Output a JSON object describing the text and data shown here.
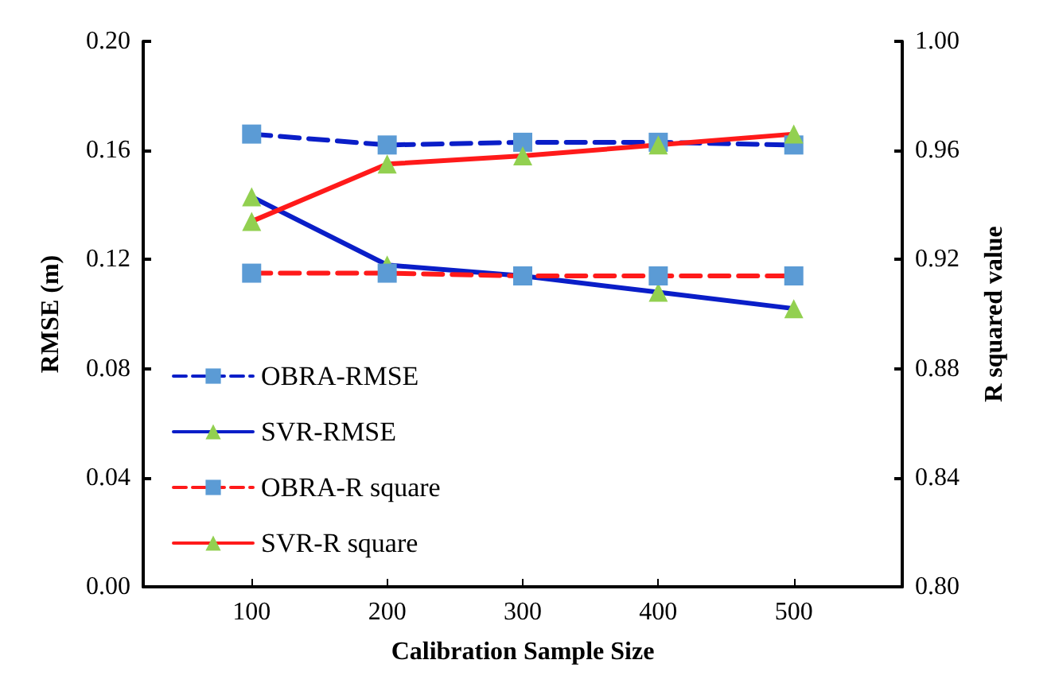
{
  "chart_data": {
    "type": "line",
    "xlabel": "Calibration Sample Size",
    "ylabel": "RMSE (m)",
    "y2label": "R squared value",
    "x": [
      100,
      200,
      300,
      400,
      500
    ],
    "xlim": [
      20,
      580
    ],
    "xticks": [
      100,
      200,
      300,
      400,
      500
    ],
    "ylim": [
      0,
      0.2
    ],
    "yticks": [
      {
        "value": 0,
        "label": "0.00"
      },
      {
        "value": 0.04,
        "label": "0.04"
      },
      {
        "value": 0.08,
        "label": "0.08"
      },
      {
        "value": 0.12,
        "label": "0.12"
      },
      {
        "value": 0.16,
        "label": "0.16"
      },
      {
        "value": 0.2,
        "label": "0.20"
      }
    ],
    "y2lim": [
      0.8,
      1.0
    ],
    "y2ticks": [
      {
        "value": 0.8,
        "label": "0.80"
      },
      {
        "value": 0.84,
        "label": "0.84"
      },
      {
        "value": 0.88,
        "label": "0.88"
      },
      {
        "value": 0.92,
        "label": "0.92"
      },
      {
        "value": 0.96,
        "label": "0.96"
      },
      {
        "value": 1.0,
        "label": "1.00"
      }
    ],
    "grid": false,
    "legend": "left",
    "series": [
      {
        "name": "OBRA-RMSE",
        "color": "#0a1ec8",
        "colors": [
          "#5b9bd5",
          "#5b9bd5",
          "#5b9bd5",
          "#5b9bd5",
          "#5b9bd5"
        ],
        "marker": "square",
        "line_style": "dashed",
        "values": [
          0.166,
          0.162,
          0.163,
          0.163,
          0.162
        ]
      },
      {
        "name": "SVR-RMSE",
        "color": "#0a1ec8",
        "colors": [
          "#92d050",
          "#92d050",
          "#92d050",
          "#92d050",
          "#92d050"
        ],
        "marker": "triangle",
        "line_style": "solid",
        "values": [
          0.143,
          0.118,
          0.114,
          0.108,
          0.102
        ]
      },
      {
        "name": "OBRA-R square",
        "color": "#ff1a1a",
        "colors": [
          "#5b9bd5",
          "#5b9bd5",
          "#5b9bd5",
          "#5b9bd5",
          "#5b9bd5"
        ],
        "marker": "square",
        "line_style": "dashed",
        "axis": "y2",
        "values": [
          0.915,
          0.915,
          0.914,
          0.914,
          0.914
        ]
      },
      {
        "name": "SVR-R square",
        "color": "#ff1a1a",
        "colors": [
          "#92d050",
          "#92d050",
          "#92d050",
          "#92d050",
          "#92d050"
        ],
        "marker": "triangle",
        "line_style": "solid",
        "axis": "y2",
        "values": [
          0.934,
          0.955,
          0.958,
          0.962,
          0.966
        ]
      }
    ]
  }
}
